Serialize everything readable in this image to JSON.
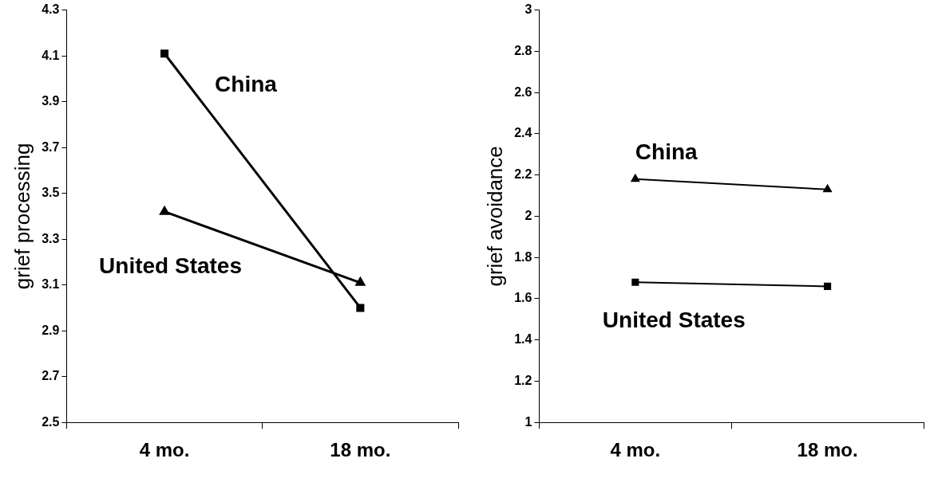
{
  "chart_data": [
    {
      "type": "line",
      "ylabel": "grief processing",
      "categories": [
        "4 mo.",
        "18 mo."
      ],
      "ylim": [
        2.5,
        4.3
      ],
      "yticks": [
        2.5,
        2.7,
        2.9,
        3.1,
        3.3,
        3.5,
        3.7,
        3.9,
        4.1,
        4.3
      ],
      "grid": false,
      "legend": false,
      "series": [
        {
          "name": "China",
          "color": "#000000",
          "marker": "square",
          "values": [
            4.11,
            3.0
          ]
        },
        {
          "name": "United States",
          "color": "#000000",
          "marker": "triangle",
          "values": [
            3.42,
            3.11
          ]
        }
      ]
    },
    {
      "type": "line",
      "ylabel": "grief avoidance",
      "categories": [
        "4 mo.",
        "18 mo."
      ],
      "ylim": [
        1,
        3
      ],
      "yticks": [
        1,
        1.2,
        1.4,
        1.6,
        1.8,
        2,
        2.2,
        2.4,
        2.6,
        2.8,
        3
      ],
      "grid": false,
      "legend": false,
      "series": [
        {
          "name": "China",
          "color": "#000000",
          "marker": "triangle",
          "values": [
            2.18,
            2.13
          ]
        },
        {
          "name": "United States",
          "color": "#000000",
          "marker": "square",
          "values": [
            1.68,
            1.66
          ]
        }
      ]
    }
  ]
}
